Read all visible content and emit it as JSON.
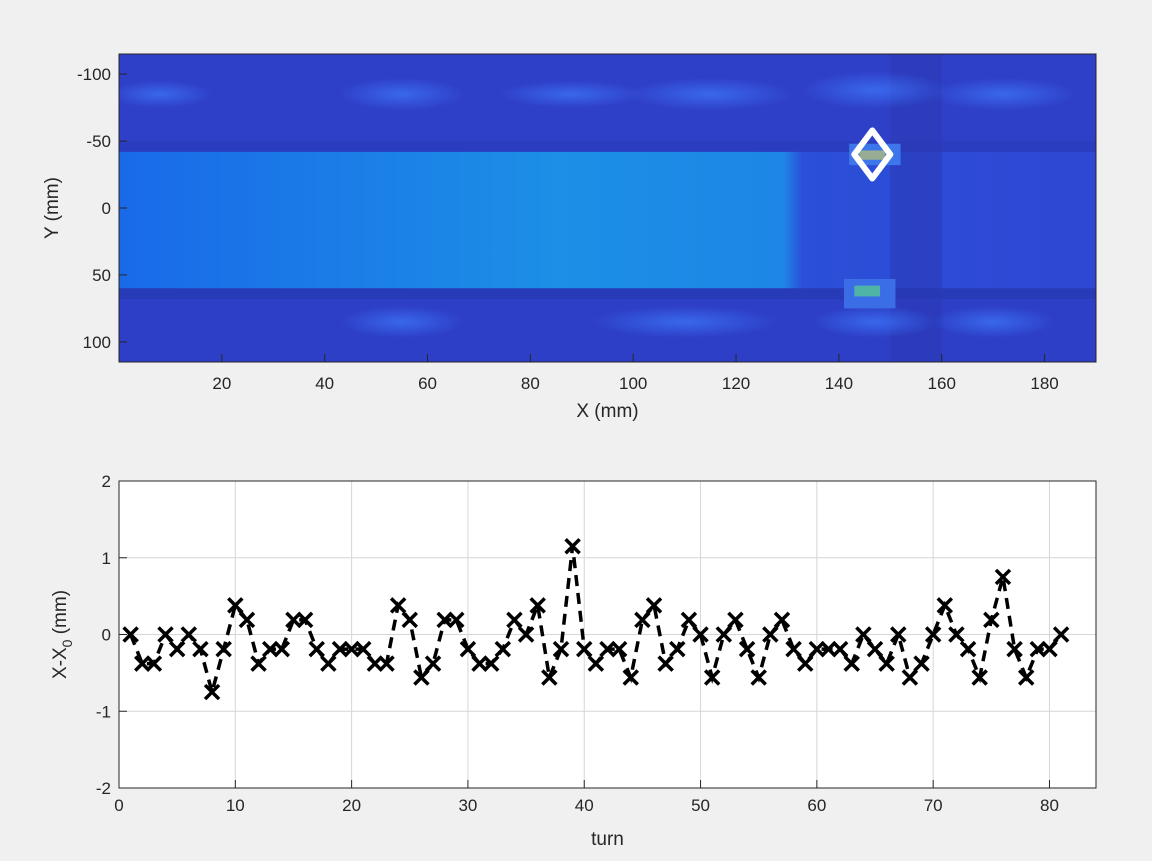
{
  "chart_data": [
    {
      "type": "heatmap",
      "title": "",
      "xlabel": "X (mm)",
      "ylabel": "Y (mm)",
      "xlim": [
        0,
        190
      ],
      "ylim": [
        -115,
        115
      ],
      "y_reversed": true,
      "x_ticks": [
        20,
        40,
        60,
        80,
        100,
        120,
        140,
        160,
        180
      ],
      "y_ticks": [
        -100,
        -50,
        0,
        50,
        100
      ],
      "grid": false,
      "colormap": "blue-dominant (parula-like)",
      "markers": [
        {
          "shape": "diamond",
          "color": "#ffffff",
          "x": 146.5,
          "y": -40
        }
      ]
    },
    {
      "type": "line",
      "title": "",
      "xlabel": "turn",
      "ylabel": "X-X",
      "ylabel_sub": "0",
      "ylabel_unit": " (mm)",
      "xlim": [
        0,
        84
      ],
      "ylim": [
        -2,
        2
      ],
      "x_ticks": [
        0,
        10,
        20,
        30,
        40,
        50,
        60,
        70,
        80
      ],
      "y_ticks": [
        -2,
        -1,
        0,
        1,
        2
      ],
      "grid": true,
      "series": [
        {
          "marker": "x",
          "line_style": "dashed",
          "color": "#000000",
          "x": [
            1,
            2,
            3,
            4,
            5,
            6,
            7,
            8,
            9,
            10,
            11,
            12,
            13,
            14,
            15,
            16,
            17,
            18,
            19,
            20,
            21,
            22,
            23,
            24,
            25,
            26,
            27,
            28,
            29,
            30,
            31,
            32,
            33,
            34,
            35,
            36,
            37,
            38,
            39,
            40,
            41,
            42,
            43,
            44,
            45,
            46,
            47,
            48,
            49,
            50,
            51,
            52,
            53,
            54,
            55,
            56,
            57,
            58,
            59,
            60,
            61,
            62,
            63,
            64,
            65,
            66,
            67,
            68,
            69,
            70,
            71,
            72,
            73,
            74,
            75,
            76,
            77,
            78,
            79,
            80,
            81
          ],
          "values": [
            0,
            -0.38,
            -0.38,
            0,
            -0.19,
            0,
            -0.19,
            -0.75,
            -0.19,
            0.38,
            0.19,
            -0.38,
            -0.19,
            -0.19,
            0.19,
            0.19,
            -0.19,
            -0.38,
            -0.19,
            -0.19,
            -0.19,
            -0.38,
            -0.38,
            0.38,
            0.19,
            -0.56,
            -0.38,
            0.19,
            0.19,
            -0.19,
            -0.38,
            -0.38,
            -0.19,
            0.19,
            0,
            0.38,
            -0.56,
            -0.19,
            1.15,
            -0.19,
            -0.38,
            -0.19,
            -0.19,
            -0.56,
            0.19,
            0.38,
            -0.38,
            -0.19,
            0.19,
            0,
            -0.56,
            0,
            0.19,
            -0.19,
            -0.56,
            0,
            0.19,
            -0.19,
            -0.38,
            -0.19,
            -0.19,
            -0.19,
            -0.38,
            0,
            -0.19,
            -0.38,
            0,
            -0.56,
            -0.38,
            0,
            0.38,
            0,
            -0.19,
            -0.56,
            0.19,
            0.75,
            -0.19,
            -0.56,
            -0.19,
            -0.19,
            0
          ]
        }
      ]
    }
  ]
}
